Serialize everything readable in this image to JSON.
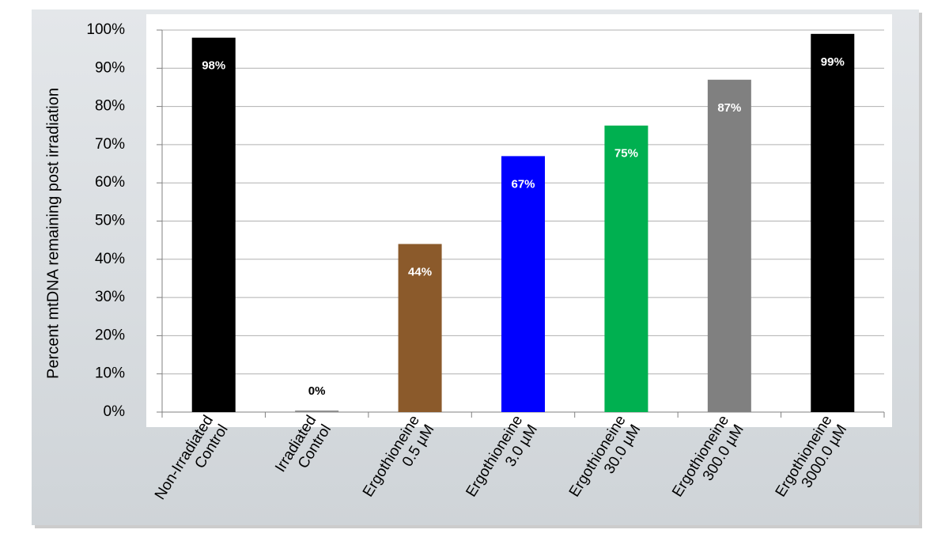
{
  "chart_data": {
    "type": "bar",
    "y_label": "Percent mtDNA remaining post irradiation",
    "categories": [
      [
        "Non-Irradiated",
        "Control"
      ],
      [
        "Irradiated",
        "Control"
      ],
      [
        "Ergothioneine",
        "0.5 µM"
      ],
      [
        "Ergothioneine",
        "3.0 µM"
      ],
      [
        "Ergothioneine",
        "30.0 µM"
      ],
      [
        "Ergothioneine",
        "300.0 µM"
      ],
      [
        "Ergothioneine",
        "3000.0 µM"
      ]
    ],
    "values": [
      98,
      0.4,
      44,
      67,
      75,
      87,
      99
    ],
    "value_labels": [
      "98%",
      "0%",
      "44%",
      "67%",
      "75%",
      "87%",
      "99%"
    ],
    "colors": [
      "#000000",
      "#8c8c8c",
      "#8b5a2b",
      "#0000ff",
      "#00b050",
      "#808080",
      "#000000"
    ],
    "ylim": [
      0,
      100
    ],
    "yticks": [
      {
        "value": 0,
        "label": "0%"
      },
      {
        "value": 10,
        "label": "10%"
      },
      {
        "value": 20,
        "label": "20%"
      },
      {
        "value": 30,
        "label": "30%"
      },
      {
        "value": 40,
        "label": "40%"
      },
      {
        "value": 50,
        "label": "50%"
      },
      {
        "value": 60,
        "label": "60%"
      },
      {
        "value": 70,
        "label": "70%"
      },
      {
        "value": 80,
        "label": "80%"
      },
      {
        "value": 90,
        "label": "90%"
      },
      {
        "value": 100,
        "label": "100%"
      }
    ],
    "grid": true
  }
}
